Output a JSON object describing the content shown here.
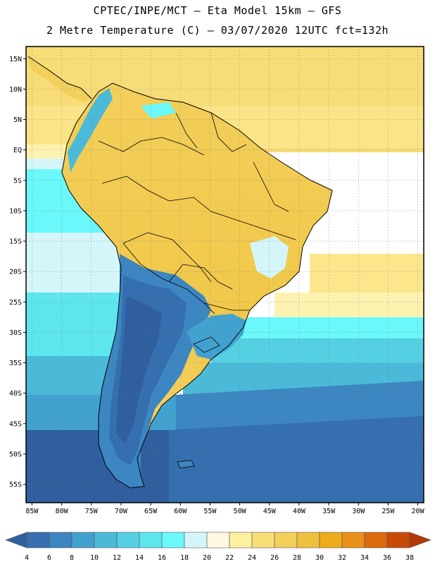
{
  "title_line1": "CPTEC/INPE/MCT –  Eta Model 15km – GFS",
  "title_line2": "2 Metre Temperature (C) – 03/07/2020 12UTC fct=132h",
  "lat_labels": [
    "15N",
    "10N",
    "5N",
    "EQ",
    "5S",
    "10S",
    "15S",
    "20S",
    "25S",
    "30S",
    "35S",
    "40S",
    "45S",
    "50S",
    "55S"
  ],
  "lon_labels": [
    "85W",
    "80W",
    "75W",
    "70W",
    "65W",
    "60W",
    "55W",
    "50W",
    "45W",
    "40W",
    "35W",
    "30W",
    "25W",
    "20W"
  ],
  "map_extent": {
    "lon": [
      -86,
      -19
    ],
    "lat": [
      -58,
      17
    ]
  },
  "colorbar": {
    "labels": [
      "4",
      "6",
      "8",
      "10",
      "12",
      "14",
      "16",
      "18",
      "20",
      "22",
      "24",
      "26",
      "28",
      "30",
      "32",
      "34",
      "36",
      "38"
    ],
    "colors": [
      "#2f5f9e",
      "#356fb0",
      "#3c86c2",
      "#42a2cf",
      "#4bbad8",
      "#55d0e3",
      "#5ee6ee",
      "#6af8fa",
      "#d4f6fb",
      "#fdf8e4",
      "#fdf0a0",
      "#f9de78",
      "#f3d05c",
      "#efbf3e",
      "#eeac1c",
      "#e8901a",
      "#dd6a0c",
      "#c84a06",
      "#b23a05"
    ]
  }
}
